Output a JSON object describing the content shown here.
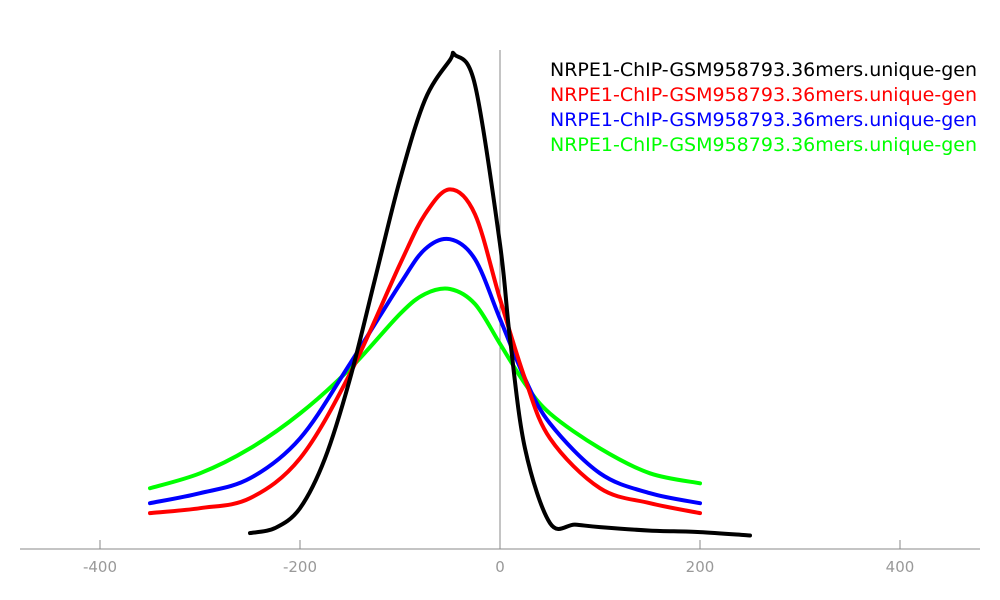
{
  "chart_data": {
    "type": "line",
    "title": "",
    "xlabel": "",
    "ylabel": "",
    "xlim": [
      -500,
      500
    ],
    "ylim": [
      0,
      1
    ],
    "x_ticks": [
      -400,
      -200,
      0,
      200,
      400
    ],
    "x_tick_labels": [
      "-400",
      "-200",
      "0",
      "200",
      "400"
    ],
    "vertical_reference_line_x": 0,
    "legend_position": "top-right",
    "series": [
      {
        "name": "NRPE1-ChIP-GSM958793.36mers.unique-gen",
        "color": "#000000",
        "x": [
          -250,
          -225,
          -200,
          -175,
          -150,
          -125,
          -100,
          -75,
          -50,
          -45,
          -25,
          0,
          10,
          25,
          50,
          75,
          100,
          150,
          200,
          250
        ],
        "y": [
          0.03,
          0.04,
          0.08,
          0.18,
          0.34,
          0.54,
          0.74,
          0.9,
          0.98,
          0.99,
          0.93,
          0.61,
          0.42,
          0.2,
          0.05,
          0.047,
          0.042,
          0.035,
          0.032,
          0.025
        ]
      },
      {
        "name": "NRPE1-ChIP-GSM958793.36mers.unique-gen",
        "color": "#ff0000",
        "x": [
          -350,
          -300,
          -250,
          -200,
          -150,
          -100,
          -75,
          -50,
          -25,
          0,
          25,
          50,
          100,
          150,
          200
        ],
        "y": [
          0.07,
          0.08,
          0.1,
          0.18,
          0.35,
          0.57,
          0.67,
          0.72,
          0.67,
          0.5,
          0.34,
          0.22,
          0.12,
          0.09,
          0.07
        ]
      },
      {
        "name": "NRPE1-ChIP-GSM958793.36mers.unique-gen",
        "color": "#0000ff",
        "x": [
          -350,
          -300,
          -250,
          -200,
          -150,
          -100,
          -75,
          -50,
          -25,
          0,
          25,
          50,
          100,
          150,
          200
        ],
        "y": [
          0.09,
          0.11,
          0.14,
          0.22,
          0.37,
          0.53,
          0.6,
          0.62,
          0.58,
          0.46,
          0.34,
          0.25,
          0.15,
          0.11,
          0.09
        ]
      },
      {
        "name": "NRPE1-ChIP-GSM958793.36mers.unique-gen",
        "color": "#00ff00",
        "x": [
          -350,
          -300,
          -250,
          -200,
          -150,
          -100,
          -75,
          -50,
          -25,
          0,
          25,
          50,
          100,
          150,
          200
        ],
        "y": [
          0.12,
          0.15,
          0.2,
          0.27,
          0.36,
          0.47,
          0.51,
          0.52,
          0.49,
          0.41,
          0.33,
          0.27,
          0.2,
          0.15,
          0.13
        ]
      }
    ]
  }
}
